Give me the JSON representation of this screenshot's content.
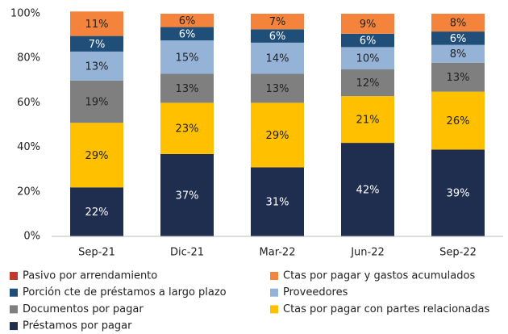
{
  "chart_data": {
    "type": "stacked_bar",
    "categories": [
      "Sep-21",
      "Dic-21",
      "Mar-22",
      "Jun-22",
      "Sep-22"
    ],
    "series": [
      {
        "name": "Pasivo por arrendamiento",
        "color": "#c0392b",
        "values": [
          0,
          0,
          0,
          0,
          0
        ]
      },
      {
        "name": "Ctas por pagar y gastos acumulados",
        "color": "#f4843c",
        "values": [
          11,
          6,
          7,
          9,
          8
        ],
        "value_labels": [
          "11%",
          "6%",
          "7%",
          "9%",
          "8%"
        ]
      },
      {
        "name": "Porción cte de préstamos a largo plazo",
        "color": "#1f4e79",
        "values": [
          7,
          6,
          6,
          6,
          6
        ],
        "value_labels": [
          "7%",
          "6%",
          "6%",
          "6%",
          "6%"
        ]
      },
      {
        "name": "Proveedores",
        "color": "#95b3d7",
        "values": [
          13,
          15,
          14,
          10,
          8
        ],
        "value_labels": [
          "13%",
          "15%",
          "14%",
          "10%",
          "8%"
        ]
      },
      {
        "name": "Documentos por pagar",
        "color": "#7f7f7f",
        "values": [
          19,
          13,
          13,
          12,
          13
        ],
        "value_labels": [
          "19%",
          "13%",
          "13%",
          "12%",
          "13%"
        ]
      },
      {
        "name": "Ctas por pagar con partes relacionadas",
        "color": "#ffc000",
        "values": [
          29,
          23,
          29,
          21,
          26
        ],
        "value_labels": [
          "29%",
          "23%",
          "29%",
          "21%",
          "26%"
        ]
      },
      {
        "name": "Préstamos por pagar",
        "color": "#1f2d4f",
        "values": [
          22,
          37,
          31,
          42,
          39
        ],
        "value_labels": [
          "22%",
          "37%",
          "31%",
          "42%",
          "39%"
        ]
      }
    ],
    "ylim": [
      0,
      100
    ],
    "yticks": [
      {
        "value": 0,
        "label": "0%"
      },
      {
        "value": 20,
        "label": "20%"
      },
      {
        "value": 40,
        "label": "40%"
      },
      {
        "value": 60,
        "label": "60%"
      },
      {
        "value": 80,
        "label": "80%"
      },
      {
        "value": 100,
        "label": "100%"
      }
    ]
  }
}
